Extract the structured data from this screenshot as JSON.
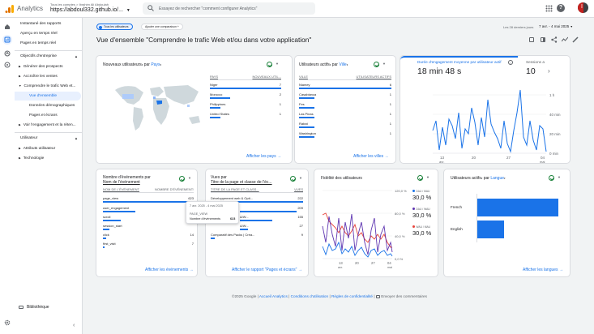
{
  "topbar": {
    "app_name": "Analytics",
    "account_path": "Tous les comptes > Ibrahim Ali Abdoulah",
    "property": "https://abdoul332.github.io/...",
    "search_placeholder": "Essayez de rechercher \"comment configurer Analytics\"",
    "avatar_letter": "I"
  },
  "sidebar": {
    "items": [
      {
        "label": "Instantané des rapports"
      },
      {
        "label": "Aperçu en temps réel"
      },
      {
        "label": "Pages en temps réel"
      }
    ],
    "section_business": "Objectifs d'entreprise",
    "business_items": [
      {
        "label": "Générer des prospects"
      },
      {
        "label": "Accroître les ventes"
      },
      {
        "label": "Comprendre le trafic Web et..."
      },
      {
        "label": "Vue d'ensemble"
      },
      {
        "label": "Données démographiques"
      },
      {
        "label": "Pages et écrans"
      },
      {
        "label": "Voir l'engagement et la réten..."
      }
    ],
    "section_user": "Utilisateur",
    "user_items": [
      {
        "label": "Attributs utilisateur"
      },
      {
        "label": "Technologie"
      }
    ],
    "library": "Bibliothèque"
  },
  "filterbar": {
    "chip": "Tous les utilisateurs",
    "add_comparison": "Ajouter une comparaison",
    "date_range_label": "Les 28 derniers jours",
    "date_range": "7 avr. - 4 mai 2025"
  },
  "page_title": "Vue d'ensemble \"Comprendre le trafic Web et/ou dans votre application\"",
  "card_country": {
    "title_prefix": "Nouveaux utilisateurs",
    "title_suffix": "par",
    "dim": "Pays",
    "col1": "PAYS",
    "col2": "NOUVEAUX UTIL...",
    "rows": [
      {
        "name": "Niger",
        "value": "7"
      },
      {
        "name": "Morocco",
        "value": "2"
      },
      {
        "name": "Philippines",
        "value": "1"
      },
      {
        "name": "United States",
        "value": "1"
      }
    ],
    "link": "Afficher les pays"
  },
  "card_city": {
    "title_prefix": "Utilisateurs actifs",
    "title_suffix": "par",
    "dim": "Ville",
    "col1": "VILLE",
    "col2": "UTILISATEURS ACTIFS",
    "rows": [
      {
        "name": "Niamey",
        "value": "6"
      },
      {
        "name": "Casablanca",
        "value": "1"
      },
      {
        "name": "Fes",
        "value": "1"
      },
      {
        "name": "Las Pinas",
        "value": "1"
      },
      {
        "name": "Rabat",
        "value": "1"
      },
      {
        "name": "Washington",
        "value": "1"
      }
    ],
    "link": "Afficher les villes"
  },
  "card_engagement": {
    "metric1_label": "Durée d'engagement moyenne par utilisateur actif",
    "metric1_value": "18 min 48 s",
    "metric2_label": "Sessions a",
    "metric2_value": "10",
    "y_ticks": [
      "1 h",
      "40 min",
      "20 min",
      "0 min"
    ],
    "x_ticks": [
      {
        "day": "13",
        "month": "avr."
      },
      {
        "day": "20",
        "month": ""
      },
      {
        "day": "27",
        "month": ""
      },
      {
        "day": "04",
        "month": "mai"
      }
    ]
  },
  "card_events": {
    "title": "Nombre d'événements par",
    "title2": "Nom de l'événement",
    "col1": "NOM DE L'ÉVÉNEMENT",
    "col2": "NOMBRE D'ÉVÉNEMENTS",
    "rows": [
      {
        "name": "page_view",
        "value": "623"
      },
      {
        "name": "user_engagement",
        "value": ""
      },
      {
        "name": "scroll",
        "value": ""
      },
      {
        "name": "session_start",
        "value": ""
      },
      {
        "name": "click",
        "value": "14"
      },
      {
        "name": "first_visit",
        "value": "7"
      }
    ],
    "tooltip": {
      "date": "7 avr. 2025 - 4 mai 2025",
      "dim": "PAGE_VIEW",
      "metric": "Nombre d'événements",
      "value": "623"
    },
    "link": "Afficher les événements"
  },
  "card_pages": {
    "title": "Vues par",
    "title2": "Titre de la page et classe de l'éc...",
    "col1": "TITRE DE LA PAGE ET CLASS...",
    "col2": "VUES",
    "rows": [
      {
        "name": "Développement web & Opti...",
        "value": "222"
      },
      {
        "name": "",
        "value": "209"
      },
      {
        "name": "A/W...",
        "value": "155"
      },
      {
        "name": "A/W...",
        "value": "27"
      },
      {
        "name": "Comparatif des Packs | Créa...",
        "value": "9"
      }
    ],
    "link": "Afficher le rapport \"Pages et écrans\""
  },
  "card_fidelity": {
    "title": "Fidélité des utilisateurs",
    "y_ticks": [
      "120,0 %",
      "80,0 %",
      "40,0 %",
      "0,0 %"
    ],
    "legend": [
      {
        "label": "DAU / MAU",
        "value": "30,0 %",
        "color": "#1a73e8"
      },
      {
        "label": "DAU / WAU",
        "value": "30,0 %",
        "color": "#5e35b1"
      },
      {
        "label": "WAU / MAU",
        "value": "30,0 %",
        "color": "#e8453c"
      }
    ],
    "x_ticks": [
      {
        "day": "13",
        "month": "avr."
      },
      {
        "day": "20",
        "month": ""
      },
      {
        "day": "27",
        "month": ""
      },
      {
        "day": "04",
        "month": "mai"
      }
    ]
  },
  "card_language": {
    "title_prefix": "Utilisateurs actifs",
    "title_suffix": "par",
    "dim": "Langue",
    "rows": [
      {
        "name": "French",
        "value": 9
      },
      {
        "name": "English",
        "value": 3
      }
    ],
    "link": "Afficher les langues"
  },
  "footer": {
    "copyright": "©2025 Google",
    "links": [
      "Accueil Analytics",
      "Conditions d'utilisation",
      "Règles de confidentialité"
    ],
    "feedback": "Envoyer des commentaires"
  },
  "colors": {
    "accent": "#1a73e8",
    "purple": "#5e35b1",
    "red": "#e8453c",
    "selected_nav": "#e8f0fe"
  }
}
